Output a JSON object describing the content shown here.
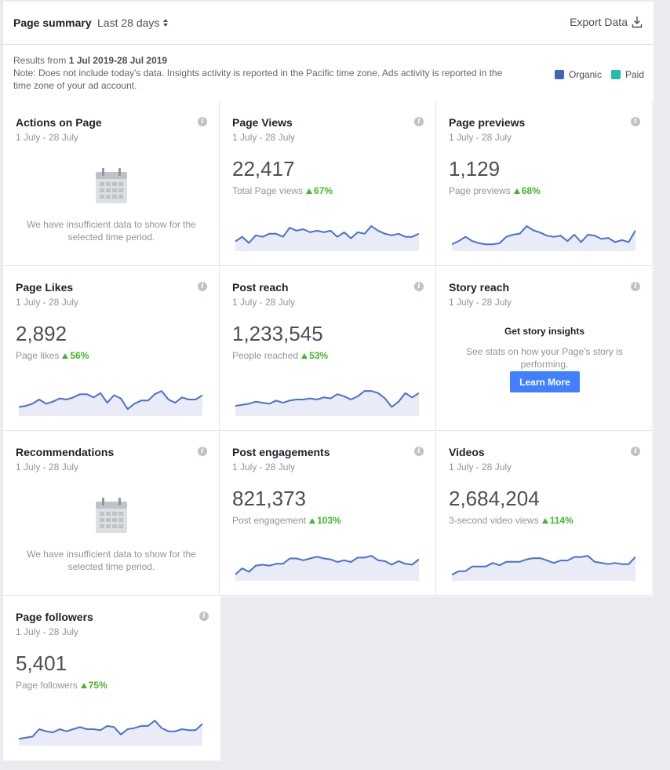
{
  "header": {
    "title": "Page summary",
    "range": "Last 28 days",
    "export_label": "Export Data"
  },
  "info": {
    "results_prefix": "Results from ",
    "results_range": "1 Jul 2019-28 Jul 2019",
    "note": "Note: Does not include today's data. Insights activity is reported in the Pacific time zone. Ads activity is reported in the time zone of your ad account."
  },
  "legend": {
    "organic_label": "Organic",
    "organic_color": "#4267b2",
    "paid_label": "Paid",
    "paid_color": "#1fbfa9"
  },
  "colors": {
    "line": "#4a6fd4",
    "fill": "#e9ecf7",
    "positive": "#42b72a",
    "button": "#4080ff"
  },
  "cards": {
    "actions_on_page": {
      "title": "Actions on Page",
      "range": "1 July - 28 July",
      "message": "We have insufficient data to show for the selected time period."
    },
    "page_views": {
      "title": "Page Views",
      "range": "1 July - 28 July",
      "value": "22,417",
      "label": "Total Page views",
      "change": "67%"
    },
    "page_previews": {
      "title": "Page previews",
      "range": "1 July - 28 July",
      "value": "1,129",
      "label": "Page previews",
      "change": "68%"
    },
    "page_likes": {
      "title": "Page Likes",
      "range": "1 July - 28 July",
      "value": "2,892",
      "label": "Page likes",
      "change": "56%"
    },
    "post_reach": {
      "title": "Post reach",
      "range": "1 July - 28 July",
      "value": "1,233,545",
      "label": "People reached",
      "change": "53%"
    },
    "story_reach": {
      "title": "Story reach",
      "range": "1 July - 28 July",
      "heading": "Get story insights",
      "description": "See stats on how your Page's story is performing.",
      "button": "Learn More"
    },
    "recommendations": {
      "title": "Recommendations",
      "range": "1 July - 28 July",
      "message": "We have insufficient data to show for the selected time period."
    },
    "post_engagements": {
      "title": "Post engagements",
      "range": "1 July - 28 July",
      "value": "821,373",
      "label": "Post engagement",
      "change": "103%"
    },
    "videos": {
      "title": "Videos",
      "range": "1 July - 28 July",
      "value": "2,684,204",
      "label": "3-second video views",
      "change": "114%"
    },
    "page_followers": {
      "title": "Page followers",
      "range": "1 July - 28 July",
      "value": "5,401",
      "label": "Page followers",
      "change": "75%"
    }
  },
  "sparklines": {
    "page_views": [
      4,
      7,
      3,
      8,
      7,
      9,
      9,
      7,
      13,
      11,
      12,
      10,
      11,
      10,
      11,
      7,
      10,
      6,
      10,
      9,
      14,
      11,
      9,
      8,
      9,
      7,
      7,
      9
    ],
    "page_previews": [
      3,
      6,
      10,
      6,
      4,
      3,
      3,
      4,
      10,
      12,
      13,
      20,
      16,
      14,
      11,
      10,
      11,
      6,
      12,
      5,
      12,
      11,
      8,
      9,
      5,
      7,
      5,
      16
    ],
    "page_likes": [
      5,
      6,
      8,
      12,
      8,
      10,
      13,
      12,
      14,
      17,
      17,
      14,
      18,
      9,
      16,
      13,
      3,
      8,
      11,
      11,
      17,
      20,
      12,
      9,
      14,
      12,
      12,
      16
    ],
    "post_reach": [
      6,
      7,
      8,
      10,
      9,
      8,
      11,
      9,
      11,
      12,
      12,
      13,
      12,
      14,
      13,
      17,
      15,
      12,
      15,
      20,
      20,
      18,
      13,
      5,
      10,
      18,
      14,
      18
    ],
    "post_engagements": [
      3,
      10,
      6,
      13,
      14,
      13,
      15,
      15,
      21,
      21,
      19,
      21,
      23,
      21,
      20,
      17,
      19,
      17,
      22,
      22,
      24,
      19,
      18,
      14,
      18,
      15,
      14,
      20
    ],
    "videos": [
      2,
      5,
      5,
      9,
      9,
      9,
      12,
      10,
      13,
      13,
      13,
      15,
      16,
      16,
      14,
      12,
      14,
      14,
      17,
      17,
      18,
      13,
      12,
      11,
      12,
      11,
      11,
      17
    ],
    "page_followers": [
      3,
      4,
      5,
      12,
      10,
      9,
      12,
      10,
      12,
      14,
      12,
      12,
      11,
      15,
      14,
      7,
      12,
      13,
      15,
      15,
      20,
      13,
      10,
      10,
      12,
      11,
      11,
      17
    ]
  }
}
